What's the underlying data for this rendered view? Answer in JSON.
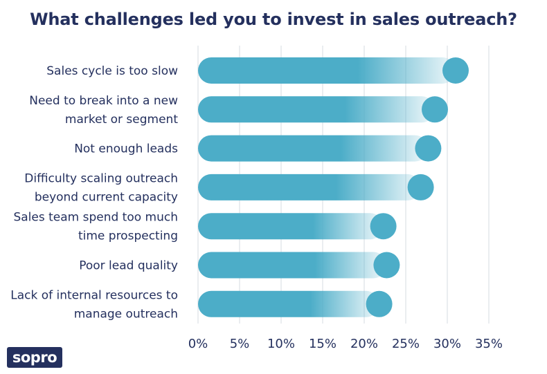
{
  "chart_data": {
    "type": "bar",
    "orientation": "horizontal",
    "title": "What challenges led you to invest in sales outreach?",
    "categories": [
      [
        "Sales cycle is too slow"
      ],
      [
        "Need to break into a new",
        "market or segment"
      ],
      [
        "Not enough leads"
      ],
      [
        "Difficulty scaling outreach",
        "beyond current capacity"
      ],
      [
        "Sales team spend too much",
        "time prospecting"
      ],
      [
        "Poor lead quality"
      ],
      [
        "Lack of internal resources to",
        "manage outreach"
      ]
    ],
    "values": [
      31,
      28.5,
      27.7,
      26.8,
      22.3,
      22.7,
      21.8
    ],
    "xlim": [
      0,
      35
    ],
    "ticks": [
      0,
      5,
      10,
      15,
      20,
      25,
      30,
      35
    ],
    "tick_labels": [
      "0%",
      "5%",
      "10%",
      "15%",
      "20%",
      "25%",
      "30%",
      "35%"
    ],
    "xlabel": "",
    "ylabel": "",
    "grid": true
  },
  "colors": {
    "bar": "#4cadc8",
    "marker": "#4cadc8",
    "text": "#24305e",
    "grid": "#e3e7ec"
  },
  "brand": {
    "logo_text": "sopro"
  }
}
